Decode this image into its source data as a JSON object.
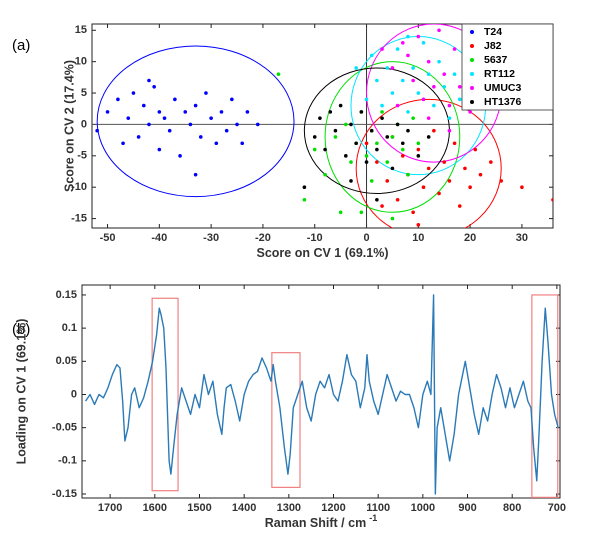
{
  "chart_data": [
    {
      "type": "scatter",
      "panel_label": "(a)",
      "xlabel": "Score on CV 1 (69.1%)",
      "ylabel": "Score on CV 2 (17.4%)",
      "xlim": [
        -53,
        36
      ],
      "ylim": [
        -16.5,
        16
      ],
      "xticks": [
        -50,
        -40,
        -30,
        -20,
        -10,
        0,
        10,
        20,
        30
      ],
      "yticks": [
        -15,
        -10,
        -5,
        0,
        5,
        10,
        15
      ],
      "vline": 0,
      "hline": 0,
      "legend": "upper right",
      "series": [
        {
          "name": "T24",
          "color": "#0000ff",
          "ellipse": {
            "cx": -33,
            "cy": 0.5,
            "rx": 19,
            "ry": 12
          },
          "x": [
            -52,
            -50,
            -48,
            -47,
            -46,
            -45,
            -44,
            -43,
            -42,
            -41,
            -40,
            -40,
            -39,
            -38,
            -37,
            -36,
            -35,
            -34,
            -33,
            -32,
            -31,
            -30,
            -29,
            -28,
            -27,
            -26,
            -25,
            -24,
            -23,
            -21,
            -33,
            -42
          ],
          "values": [
            -1,
            2,
            4,
            -3,
            1,
            5,
            -2,
            3,
            0,
            6,
            -4,
            2,
            1,
            -1,
            4,
            -5,
            2,
            0,
            3,
            -2,
            5,
            1,
            -3,
            2,
            -1,
            4,
            0,
            -3,
            2,
            0,
            -8,
            7
          ]
        },
        {
          "name": "J82",
          "color": "#ff0000",
          "ellipse": {
            "cx": 12,
            "cy": -7,
            "rx": 14,
            "ry": 11
          },
          "x": [
            0,
            2,
            4,
            5,
            6,
            7,
            8,
            9,
            10,
            11,
            12,
            13,
            14,
            15,
            16,
            17,
            18,
            19,
            20,
            21,
            22,
            24,
            26,
            30,
            36,
            10,
            3
          ],
          "values": [
            -3,
            -6,
            -9,
            -2,
            -12,
            -5,
            -8,
            -14,
            -4,
            -10,
            -7,
            -1,
            -11,
            -6,
            -9,
            -3,
            -13,
            -7,
            -10,
            -4,
            -8,
            -6,
            -9,
            -10,
            -12,
            -16,
            -13
          ]
        },
        {
          "name": "5637",
          "color": "#00e000",
          "ellipse": {
            "cx": 5,
            "cy": -2,
            "rx": 13,
            "ry": 12
          },
          "x": [
            -12,
            -10,
            -8,
            -6,
            -5,
            -4,
            -3,
            -2,
            -1,
            0,
            1,
            1,
            2,
            3,
            4,
            5,
            6,
            7,
            8,
            9,
            10,
            -1,
            -17,
            -6,
            5
          ],
          "values": [
            -12,
            -4,
            -8,
            -2,
            -14,
            0,
            -6,
            -3,
            2,
            -5,
            -1,
            -9,
            -3,
            2,
            -6,
            -2,
            0,
            -4,
            -8,
            1,
            -3,
            -14,
            8,
            -17,
            -15
          ]
        },
        {
          "name": "RT112",
          "color": "#00e5ff",
          "ellipse": {
            "cx": 10,
            "cy": 3,
            "rx": 13,
            "ry": 11
          },
          "x": [
            -2,
            0,
            1,
            2,
            3,
            4,
            5,
            6,
            7,
            8,
            9,
            10,
            11,
            12,
            13,
            14,
            15,
            16,
            17,
            18,
            20,
            22,
            8,
            24
          ],
          "values": [
            9,
            4,
            11,
            7,
            3,
            9,
            5,
            12,
            7,
            2,
            9,
            5,
            13,
            8,
            3,
            10,
            6,
            1,
            8,
            4,
            7,
            5,
            14,
            3
          ]
        },
        {
          "name": "UMUC3",
          "color": "#ff00ff",
          "ellipse": {
            "cx": 13,
            "cy": 5,
            "rx": 13,
            "ry": 11
          },
          "x": [
            3,
            5,
            6,
            8,
            9,
            10,
            11,
            12,
            13,
            14,
            15,
            16,
            17,
            18,
            19,
            20,
            21,
            22,
            23,
            24,
            26,
            16,
            12,
            7
          ],
          "values": [
            12,
            9,
            3,
            11,
            7,
            14,
            4,
            10,
            6,
            15,
            8,
            3,
            12,
            6,
            10,
            2,
            8,
            5,
            11,
            7,
            4,
            -1,
            1,
            13
          ]
        },
        {
          "name": "HT1376",
          "color": "#000000",
          "ellipse": {
            "cx": 2,
            "cy": -1,
            "rx": 14,
            "ry": 10
          },
          "x": [
            -10,
            -9,
            -8,
            -7,
            -6,
            -5,
            -4,
            -3,
            -2,
            -1,
            0,
            1,
            2,
            3,
            4,
            5,
            6,
            7,
            8,
            10,
            -12,
            12,
            -3,
            2
          ],
          "values": [
            -2,
            1,
            -4,
            2,
            -1,
            3,
            -5,
            0,
            -3,
            2,
            -6,
            -1,
            -4,
            1,
            -2,
            -7,
            0,
            -3,
            -1,
            -5,
            -10,
            -2,
            -9,
            -12
          ]
        }
      ]
    },
    {
      "type": "line",
      "panel_label": "(b)",
      "xlabel": "Raman Shift / cm",
      "xlabel_sup": "-1",
      "ylabel": "Loading on CV 1 (69.1%)",
      "xlim": [
        1763,
        693
      ],
      "ylim": [
        -0.156,
        0.165
      ],
      "xticks": [
        1700,
        1600,
        1500,
        1400,
        1300,
        1200,
        1100,
        1000,
        900,
        800,
        700
      ],
      "yticks": [
        -0.15,
        -0.1,
        -0.05,
        0,
        0.05,
        0.1,
        0.15
      ],
      "color": "#2a7ab8",
      "highlight_color": "#f08080",
      "highlights": [
        {
          "x": [
            1606,
            1548
          ],
          "y": [
            -0.145,
            0.145
          ]
        },
        {
          "x": [
            1338,
            1275
          ],
          "y": [
            -0.14,
            0.063
          ]
        },
        {
          "x": [
            756,
            698
          ],
          "y": [
            -0.155,
            0.15
          ]
        }
      ],
      "x": [
        1755,
        1745,
        1735,
        1725,
        1715,
        1705,
        1695,
        1685,
        1678,
        1672,
        1667,
        1660,
        1652,
        1645,
        1635,
        1625,
        1615,
        1605,
        1596,
        1590,
        1586,
        1580,
        1575,
        1572,
        1568,
        1564,
        1558,
        1550,
        1540,
        1530,
        1520,
        1510,
        1500,
        1490,
        1480,
        1470,
        1460,
        1450,
        1445,
        1440,
        1430,
        1420,
        1410,
        1400,
        1390,
        1380,
        1370,
        1360,
        1350,
        1340,
        1335,
        1330,
        1320,
        1310,
        1302,
        1297,
        1290,
        1280,
        1270,
        1260,
        1250,
        1240,
        1230,
        1220,
        1210,
        1200,
        1190,
        1180,
        1170,
        1160,
        1150,
        1140,
        1130,
        1125,
        1120,
        1110,
        1100,
        1090,
        1080,
        1070,
        1060,
        1050,
        1040,
        1030,
        1020,
        1010,
        1000,
        990,
        982,
        976,
        972,
        968,
        960,
        950,
        940,
        930,
        920,
        905,
        895,
        885,
        875,
        865,
        855,
        845,
        835,
        825,
        815,
        805,
        795,
        785,
        775,
        765,
        758,
        752,
        745,
        740,
        733,
        726,
        720,
        712,
        705,
        697
      ],
      "values": [
        -0.01,
        0.0,
        -0.015,
        0.0,
        -0.005,
        0.01,
        0.03,
        0.045,
        0.04,
        -0.01,
        -0.07,
        -0.05,
        0.0,
        0.01,
        -0.02,
        -0.005,
        0.02,
        0.05,
        0.09,
        0.13,
        0.12,
        0.1,
        0.04,
        -0.02,
        -0.1,
        -0.12,
        -0.08,
        -0.03,
        0.01,
        -0.01,
        -0.03,
        0.0,
        -0.02,
        0.03,
        0.0,
        0.02,
        -0.03,
        -0.06,
        -0.02,
        0.01,
        0.015,
        -0.01,
        -0.04,
        0.0,
        0.02,
        0.03,
        0.035,
        0.055,
        0.04,
        0.02,
        0.045,
        0.02,
        -0.02,
        -0.08,
        -0.12,
        -0.09,
        -0.02,
        0.0,
        0.02,
        -0.02,
        -0.04,
        0.0,
        0.02,
        0.01,
        0.03,
        0.0,
        -0.01,
        0.02,
        0.06,
        0.03,
        0.02,
        -0.02,
        0.01,
        0.06,
        0.02,
        -0.01,
        -0.03,
        0.0,
        0.03,
        0.01,
        -0.01,
        0.005,
        0.0,
        0.0,
        -0.02,
        -0.05,
        0.0,
        0.02,
        0.0,
        0.15,
        -0.15,
        -0.05,
        -0.02,
        -0.06,
        -0.1,
        -0.06,
        0.0,
        0.05,
        0.01,
        -0.03,
        -0.06,
        -0.02,
        -0.04,
        0.0,
        0.03,
        0.01,
        -0.02,
        0.01,
        -0.02,
        0.0,
        0.02,
        -0.01,
        -0.02,
        -0.08,
        -0.13,
        -0.06,
        0.05,
        0.13,
        0.08,
        0.0,
        -0.03,
        -0.05
      ]
    }
  ]
}
